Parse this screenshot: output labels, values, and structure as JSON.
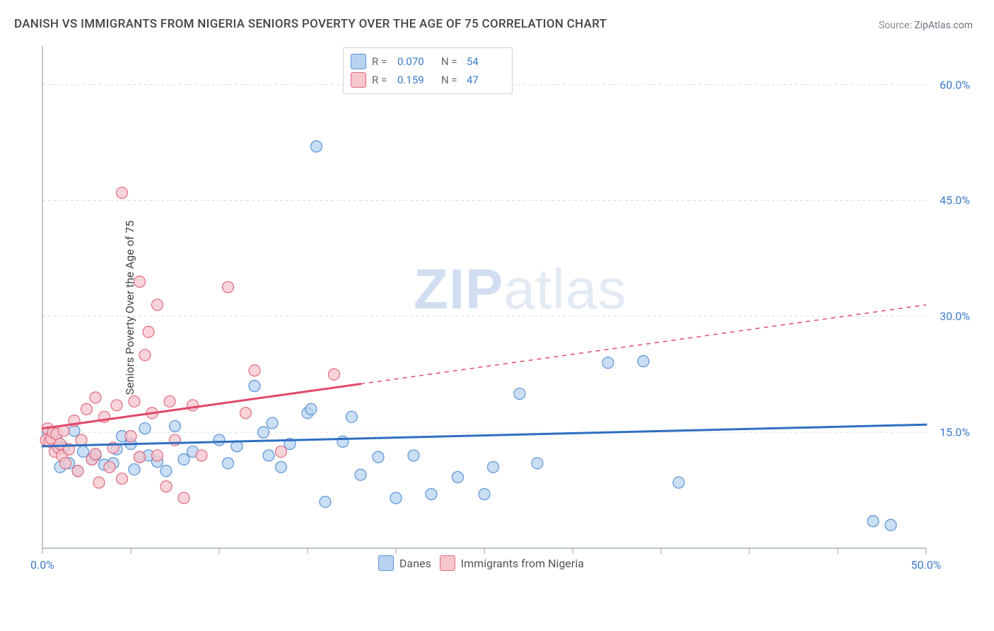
{
  "title": "DANISH VS IMMIGRANTS FROM NIGERIA SENIORS POVERTY OVER THE AGE OF 75 CORRELATION CHART",
  "source_label": "Source:",
  "source_name": "ZipAtlas.com",
  "ylabel": "Seniors Poverty Over the Age of 75",
  "watermark_zip": "ZIP",
  "watermark_atlas": "atlas",
  "chart": {
    "type": "scatter",
    "xlim": [
      0,
      50
    ],
    "ylim": [
      0,
      65
    ],
    "x_ticks_labeled": [
      {
        "v": 0,
        "label": "0.0%"
      },
      {
        "v": 50,
        "label": "50.0%"
      }
    ],
    "x_ticks_minor": [
      5,
      10,
      15,
      20,
      25,
      30,
      35,
      40,
      45
    ],
    "y_ticks_labeled": [
      {
        "v": 15,
        "label": "15.0%"
      },
      {
        "v": 30,
        "label": "30.0%"
      },
      {
        "v": 45,
        "label": "45.0%"
      },
      {
        "v": 60,
        "label": "60.0%"
      }
    ],
    "background_color": "#ffffff",
    "grid_color": "#d8dde4",
    "axis_color": "#9aa3ad",
    "marker_radius": 8,
    "marker_stroke_width": 1.2,
    "trend_line_width": 3,
    "series": [
      {
        "key": "danes",
        "name": "Danes",
        "fill": "#b8d3f0",
        "stroke": "#5a93d6",
        "trend_color": "#2f6fc1",
        "trend": {
          "x1": 0,
          "y1": 13.2,
          "x2": 50,
          "y2": 16.0,
          "dash_from_x": null
        },
        "points": [
          [
            0.3,
            15.0
          ],
          [
            0.8,
            14.0
          ],
          [
            1.0,
            10.5
          ],
          [
            1.2,
            13.0
          ],
          [
            1.5,
            11.0
          ],
          [
            1.8,
            15.2
          ],
          [
            2.0,
            10.0
          ],
          [
            2.3,
            12.5
          ],
          [
            2.8,
            11.5
          ],
          [
            3.0,
            12.0
          ],
          [
            3.5,
            10.8
          ],
          [
            4.0,
            11.0
          ],
          [
            4.2,
            12.8
          ],
          [
            4.5,
            14.5
          ],
          [
            5.0,
            13.5
          ],
          [
            5.2,
            10.2
          ],
          [
            5.5,
            11.8
          ],
          [
            5.8,
            15.5
          ],
          [
            6.0,
            12.0
          ],
          [
            6.5,
            11.2
          ],
          [
            7.0,
            10.0
          ],
          [
            7.5,
            15.8
          ],
          [
            8.0,
            11.5
          ],
          [
            8.5,
            12.5
          ],
          [
            10.0,
            14.0
          ],
          [
            10.5,
            11.0
          ],
          [
            11.0,
            13.2
          ],
          [
            12.0,
            21.0
          ],
          [
            12.5,
            15.0
          ],
          [
            12.8,
            12.0
          ],
          [
            13.0,
            16.2
          ],
          [
            13.5,
            10.5
          ],
          [
            14.0,
            13.5
          ],
          [
            15.0,
            17.5
          ],
          [
            15.2,
            18.0
          ],
          [
            15.5,
            52.0
          ],
          [
            16.0,
            6.0
          ],
          [
            17.0,
            13.8
          ],
          [
            17.5,
            17.0
          ],
          [
            18.0,
            9.5
          ],
          [
            19.0,
            11.8
          ],
          [
            20.0,
            6.5
          ],
          [
            21.0,
            12.0
          ],
          [
            22.0,
            7.0
          ],
          [
            23.5,
            9.2
          ],
          [
            25.0,
            7.0
          ],
          [
            25.5,
            10.5
          ],
          [
            27.0,
            20.0
          ],
          [
            28.0,
            11.0
          ],
          [
            32.0,
            24.0
          ],
          [
            34.0,
            24.2
          ],
          [
            36.0,
            8.5
          ],
          [
            47.0,
            3.5
          ],
          [
            48.0,
            3.0
          ]
        ]
      },
      {
        "key": "nigeria",
        "name": "Immigrants from Nigeria",
        "fill": "#f6c5cd",
        "stroke": "#e06a80",
        "trend_color": "#e04a6a",
        "trend": {
          "x1": 0,
          "y1": 15.5,
          "x2": 50,
          "y2": 31.5,
          "dash_from_x": 18
        },
        "points": [
          [
            0.2,
            14.0
          ],
          [
            0.3,
            15.5
          ],
          [
            0.4,
            13.8
          ],
          [
            0.5,
            14.2
          ],
          [
            0.6,
            15.0
          ],
          [
            0.7,
            12.5
          ],
          [
            0.8,
            14.8
          ],
          [
            0.9,
            13.0
          ],
          [
            1.0,
            13.5
          ],
          [
            1.1,
            12.0
          ],
          [
            1.2,
            15.2
          ],
          [
            1.3,
            11.0
          ],
          [
            1.5,
            12.8
          ],
          [
            1.8,
            16.5
          ],
          [
            2.0,
            10.0
          ],
          [
            2.2,
            14.0
          ],
          [
            2.5,
            18.0
          ],
          [
            2.8,
            11.5
          ],
          [
            3.0,
            12.2
          ],
          [
            3.0,
            19.5
          ],
          [
            3.2,
            8.5
          ],
          [
            3.5,
            17.0
          ],
          [
            3.8,
            10.5
          ],
          [
            4.0,
            13.0
          ],
          [
            4.2,
            18.5
          ],
          [
            4.5,
            9.0
          ],
          [
            4.5,
            46.0
          ],
          [
            5.0,
            14.5
          ],
          [
            5.2,
            19.0
          ],
          [
            5.5,
            11.8
          ],
          [
            5.5,
            34.5
          ],
          [
            5.8,
            25.0
          ],
          [
            6.0,
            28.0
          ],
          [
            6.2,
            17.5
          ],
          [
            6.5,
            12.0
          ],
          [
            6.5,
            31.5
          ],
          [
            7.0,
            8.0
          ],
          [
            7.2,
            19.0
          ],
          [
            7.5,
            14.0
          ],
          [
            8.0,
            6.5
          ],
          [
            8.5,
            18.5
          ],
          [
            9.0,
            12.0
          ],
          [
            10.5,
            33.8
          ],
          [
            11.5,
            17.5
          ],
          [
            12.0,
            23.0
          ],
          [
            13.5,
            12.5
          ],
          [
            16.5,
            22.5
          ]
        ]
      }
    ],
    "stats": [
      {
        "series_key": "danes",
        "R": "0.070",
        "N": "54"
      },
      {
        "series_key": "nigeria",
        "R": "0.159",
        "N": "47"
      }
    ]
  },
  "legend_labels": {
    "R": "R =",
    "N": "N ="
  }
}
